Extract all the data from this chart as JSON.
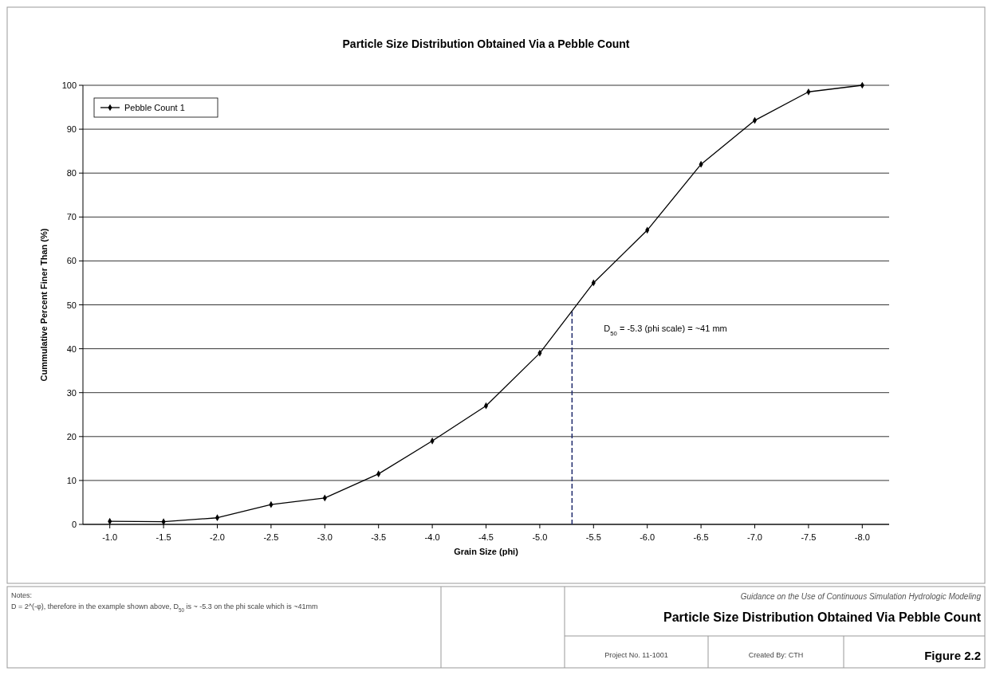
{
  "chart_data": {
    "type": "line",
    "title": "Particle Size Distribution Obtained Via a Pebble Count",
    "xlabel": "Grain Size (phi)",
    "ylabel": "Cummulative Percent Finer Than (%)",
    "x": [
      -1.0,
      -1.5,
      -2.0,
      -2.5,
      -3.0,
      -3.5,
      -4.0,
      -4.5,
      -5.0,
      -5.5,
      -6.0,
      -6.5,
      -7.0,
      -7.5,
      -8.0
    ],
    "series": [
      {
        "name": "Pebble Count 1",
        "color": "#000000",
        "values": [
          0.7,
          0.6,
          1.5,
          4.5,
          6,
          11.5,
          19,
          27,
          39,
          55,
          67,
          82,
          92,
          98.5,
          100
        ]
      }
    ],
    "xlim": [
      -0.75,
      -8.25
    ],
    "xticks": [
      {
        "value": -1.0,
        "label": "-1.0"
      },
      {
        "value": -1.5,
        "label": "-1.5"
      },
      {
        "value": -2.0,
        "label": "-2.0"
      },
      {
        "value": -2.5,
        "label": "-2.5"
      },
      {
        "value": -3.0,
        "label": "-3.0"
      },
      {
        "value": -3.5,
        "label": "-3.5"
      },
      {
        "value": -4.0,
        "label": "-4.0"
      },
      {
        "value": -4.5,
        "label": "-4.5"
      },
      {
        "value": -5.0,
        "label": "-5.0"
      },
      {
        "value": -5.5,
        "label": "-5.5"
      },
      {
        "value": -6.0,
        "label": "-6.0"
      },
      {
        "value": -6.5,
        "label": "-6.5"
      },
      {
        "value": -7.0,
        "label": "-7.0"
      },
      {
        "value": -7.5,
        "label": "-7.5"
      },
      {
        "value": -8.0,
        "label": "-8.0"
      }
    ],
    "ylim": [
      0,
      100
    ],
    "yticks": [
      0,
      10,
      20,
      30,
      40,
      50,
      60,
      70,
      80,
      90,
      100
    ],
    "grid": "y",
    "legend": "top left",
    "marker": "diamond",
    "line_style": "solid",
    "ref_lines": [
      {
        "axis": "x",
        "value": -5.3,
        "color": "#1f2a6b",
        "line_style": "dashed"
      }
    ],
    "annotations": [
      "D$_{50}$ = -5.3 (phi scale) = ~41 mm",
      "Notes:",
      "D = 2^(-φ), therefore in the example shown above, D$_{50}$ is ~ -5.3 on the phi scale which is ~41mm",
      "Guidance on the Use of Continuous Simulation Hydrologic Modeling",
      "Particle Size Distribution Obtained Via Pebble Count",
      "Project No. 11-1001",
      "Created By: CTH",
      "Figure 2.2"
    ]
  }
}
